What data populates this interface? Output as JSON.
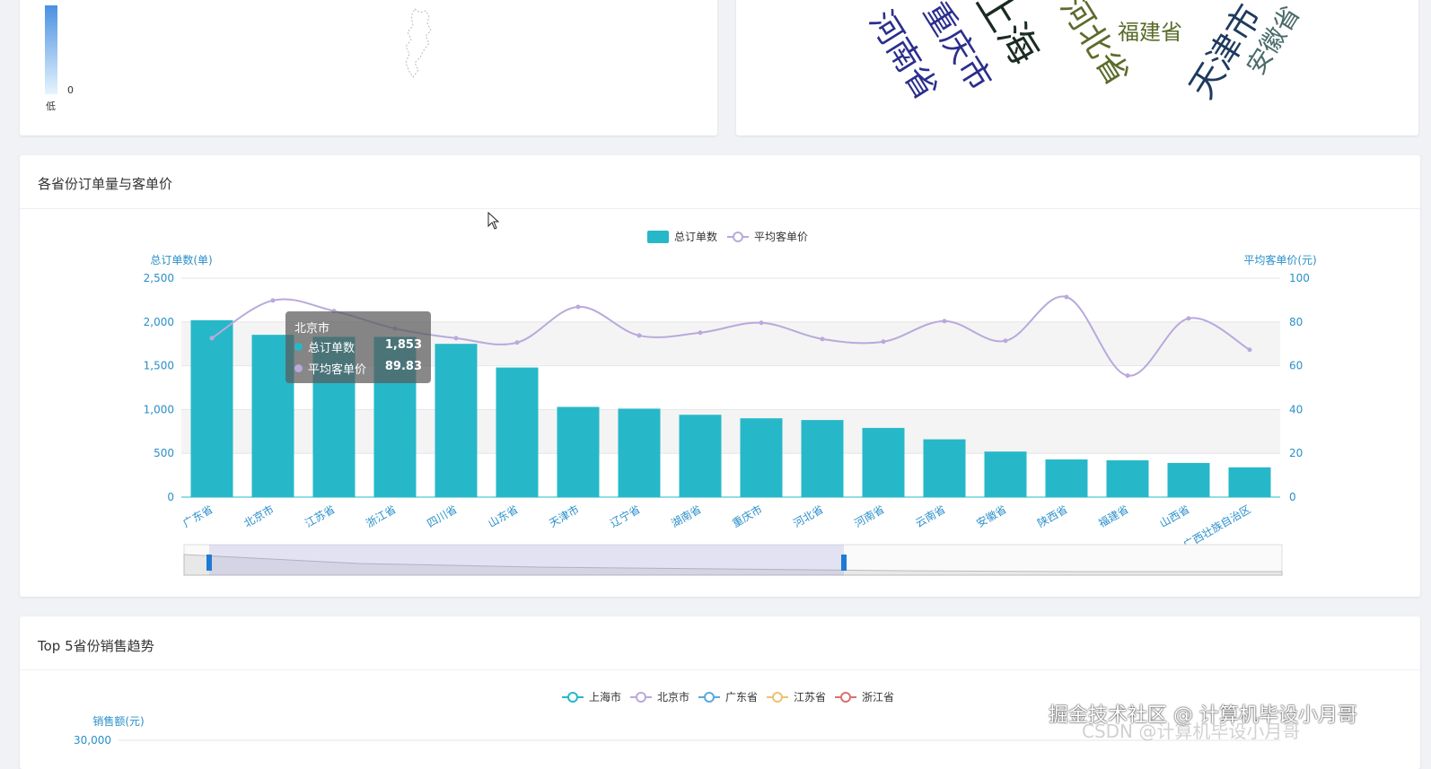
{
  "map_card": {
    "visual_map": {
      "min_label": "0",
      "low_label": "低"
    }
  },
  "wordcloud_card": {
    "words": [
      {
        "text": "河南省",
        "color": "#2b2e8c"
      },
      {
        "text": "重庆市",
        "color": "#2b2e8c"
      },
      {
        "text": "上海",
        "color": "#1a2b22"
      },
      {
        "text": "河北省",
        "color": "#5b6b2a"
      },
      {
        "text": "福建省",
        "color": "#5b6b2a"
      },
      {
        "text": "天津市",
        "color": "#1e3a5f"
      },
      {
        "text": "安徽省",
        "color": "#4a6b6a"
      }
    ]
  },
  "combo_card": {
    "title": "各省份订单量与客单价",
    "tooltip": {
      "title": "北京市",
      "rows": [
        {
          "label": "总订单数",
          "value": "1,853",
          "color": "#26b8c9"
        },
        {
          "label": "平均客单价",
          "value": "89.83",
          "color": "#b9a9dc"
        }
      ]
    }
  },
  "top5_card": {
    "title": "Top 5省份销售趋势",
    "legend": [
      {
        "name": "上海市",
        "color": "#26b8c9"
      },
      {
        "name": "北京市",
        "color": "#b9a9dc"
      },
      {
        "name": "广东省",
        "color": "#5aa8dc"
      },
      {
        "name": "江苏省",
        "color": "#f0c070"
      },
      {
        "name": "浙江省",
        "color": "#d9726e"
      }
    ],
    "y_axis_label": "销售额(元)",
    "y_top_tick": "30,000"
  },
  "watermark": "掘金技术社区 @ 计算机毕设小月哥",
  "watermark2": "CSDN @计算机毕设小月哥",
  "chart_data": [
    {
      "type": "bar",
      "categories": [
        "广东省",
        "北京市",
        "江苏省",
        "浙江省",
        "四川省",
        "山东省",
        "天津市",
        "辽宁省",
        "湖南省",
        "重庆市",
        "河北省",
        "河南省",
        "云南省",
        "安徽省",
        "陕西省",
        "福建省",
        "山西省",
        "广西壮族自治区"
      ],
      "series": [
        {
          "name": "总订单数",
          "type": "bar",
          "axis": "left",
          "color": "#26b8c9",
          "values": [
            2020,
            1853,
            1830,
            1830,
            1750,
            1480,
            1030,
            1010,
            940,
            900,
            880,
            790,
            660,
            520,
            430,
            420,
            390,
            340
          ]
        },
        {
          "name": "平均客单价",
          "type": "line",
          "axis": "right",
          "color": "#b9a9dc",
          "values": [
            72.6,
            89.83,
            85,
            77,
            72.6,
            70.6,
            86.9,
            73.8,
            75.1,
            79.6,
            72.2,
            71,
            80.4,
            71.4,
            91.4,
            55.5,
            81.6,
            67.3
          ]
        }
      ],
      "legend": [
        "总订单数",
        "平均客单价"
      ],
      "ylabel": "总订单数(单)",
      "ylabel_right": "平均客单价(元)",
      "ylim": [
        0,
        2500
      ],
      "ylim_right": [
        0,
        100
      ],
      "yticks": [
        "0",
        "500",
        "1,000",
        "1,500",
        "2,000",
        "2,500"
      ],
      "yticks_right": [
        "0",
        "20",
        "40",
        "60",
        "80",
        "100"
      ],
      "grid": true,
      "legend_position": "top-center"
    }
  ]
}
